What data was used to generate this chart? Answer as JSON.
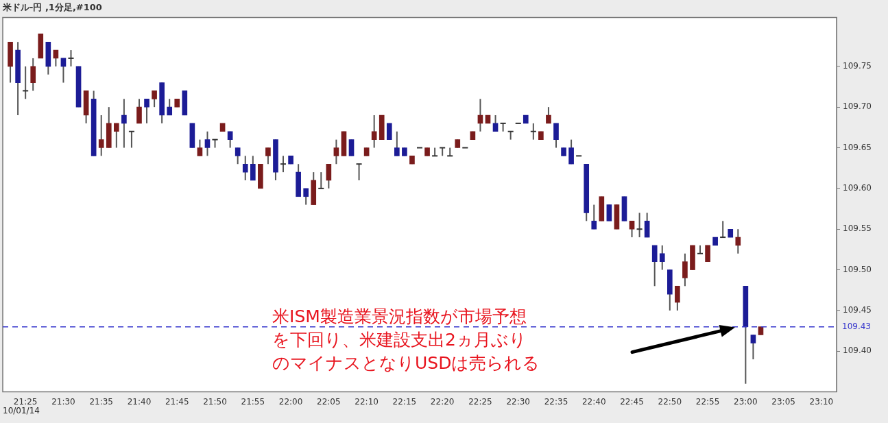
{
  "chart_data": {
    "type": "candlestick",
    "title": "米ドル-円 ,1分足,#100",
    "x": [
      "--10-01T21:23",
      "--10-01T21:24",
      "--10-01T21:25",
      "--10-01T21:26",
      "--10-01T21:27",
      "--10-01T21:28",
      "--10-01T21:29",
      "--10-01T21:30",
      "--10-01T21:31",
      "--10-01T21:32",
      "--10-01T21:33",
      "--10-01T21:34",
      "--10-01T21:35",
      "--10-01T21:36",
      "--10-01T21:37",
      "--10-01T21:38",
      "--10-01T21:39",
      "--10-01T21:40",
      "--10-01T21:41",
      "--10-01T21:42",
      "--10-01T21:43",
      "--10-01T21:44",
      "--10-01T21:45",
      "--10-01T21:46",
      "--10-01T21:47",
      "--10-01T21:48",
      "--10-01T21:49",
      "--10-01T21:50",
      "--10-01T21:51",
      "--10-01T21:52",
      "--10-01T21:53",
      "--10-01T21:54",
      "--10-01T21:55",
      "--10-01T21:56",
      "--10-01T21:57",
      "--10-01T21:58",
      "--10-01T21:59",
      "--10-01T22:00",
      "--10-01T22:01",
      "--10-01T22:02",
      "--10-01T22:03",
      "--10-01T22:04",
      "--10-01T22:05",
      "--10-01T22:06",
      "--10-01T22:07",
      "--10-01T22:08",
      "--10-01T22:09",
      "--10-01T22:10",
      "--10-01T22:11",
      "--10-01T22:12",
      "--10-01T22:13",
      "--10-01T22:14",
      "--10-01T22:15",
      "--10-01T22:16",
      "--10-01T22:17",
      "--10-01T22:18",
      "--10-01T22:19",
      "--10-01T22:20",
      "--10-01T22:21",
      "--10-01T22:22",
      "--10-01T22:23",
      "--10-01T22:24",
      "--10-01T22:25",
      "--10-01T22:26",
      "--10-01T22:27",
      "--10-01T22:28",
      "--10-01T22:29",
      "--10-01T22:30",
      "--10-01T22:31",
      "--10-01T22:32",
      "--10-01T22:33",
      "--10-01T22:34",
      "--10-01T22:35",
      "--10-01T22:36",
      "--10-01T22:37",
      "--10-01T22:38",
      "--10-01T22:39",
      "--10-01T22:40",
      "--10-01T22:41",
      "--10-01T22:42",
      "--10-01T22:43",
      "--10-01T22:44",
      "--10-01T22:45",
      "--10-01T22:46",
      "--10-01T22:47",
      "--10-01T22:48",
      "--10-01T22:49",
      "--10-01T22:50",
      "--10-01T22:51",
      "--10-01T22:52",
      "--10-01T22:53",
      "--10-01T22:54",
      "--10-01T22:55",
      "--10-01T22:56",
      "--10-01T22:57",
      "--10-01T22:58",
      "--10-01T22:59",
      "--10-01T23:00",
      "--10-01T23:01",
      "--10-01T23:02"
    ],
    "ohlc": [
      [
        109.75,
        109.78,
        109.73,
        109.78
      ],
      [
        109.77,
        109.78,
        109.69,
        109.73
      ],
      [
        109.72,
        109.75,
        109.71,
        109.72
      ],
      [
        109.73,
        109.76,
        109.72,
        109.75
      ],
      [
        109.76,
        109.79,
        109.76,
        109.79
      ],
      [
        109.78,
        109.78,
        109.74,
        109.75
      ],
      [
        109.76,
        109.77,
        109.75,
        109.77
      ],
      [
        109.76,
        109.76,
        109.73,
        109.75
      ],
      [
        109.76,
        109.77,
        109.75,
        109.76
      ],
      [
        109.75,
        109.75,
        109.7,
        109.7
      ],
      [
        109.69,
        109.72,
        109.68,
        109.72
      ],
      [
        109.71,
        109.72,
        109.64,
        109.64
      ],
      [
        109.65,
        109.69,
        109.64,
        109.66
      ],
      [
        109.65,
        109.7,
        109.65,
        109.68
      ],
      [
        109.67,
        109.68,
        109.65,
        109.68
      ],
      [
        109.69,
        109.71,
        109.65,
        109.68
      ],
      [
        109.67,
        109.67,
        109.65,
        109.67
      ],
      [
        109.68,
        109.71,
        109.68,
        109.7
      ],
      [
        109.71,
        109.71,
        109.68,
        109.7
      ],
      [
        109.71,
        109.72,
        109.7,
        109.72
      ],
      [
        109.73,
        109.73,
        109.68,
        109.69
      ],
      [
        109.7,
        109.71,
        109.69,
        109.69
      ],
      [
        109.7,
        109.71,
        109.7,
        109.71
      ],
      [
        109.72,
        109.72,
        109.69,
        109.69
      ],
      [
        109.68,
        109.68,
        109.65,
        109.65
      ],
      [
        109.64,
        109.66,
        109.64,
        109.65
      ],
      [
        109.66,
        109.67,
        109.64,
        109.65
      ],
      [
        109.66,
        109.66,
        109.65,
        109.66
      ],
      [
        109.67,
        109.68,
        109.67,
        109.68
      ],
      [
        109.67,
        109.67,
        109.65,
        109.66
      ],
      [
        109.65,
        109.65,
        109.63,
        109.64
      ],
      [
        109.63,
        109.64,
        109.61,
        109.62
      ],
      [
        109.63,
        109.64,
        109.61,
        109.61
      ],
      [
        109.6,
        109.63,
        109.6,
        109.63
      ],
      [
        109.64,
        109.65,
        109.63,
        109.65
      ],
      [
        109.66,
        109.66,
        109.61,
        109.62
      ],
      [
        109.63,
        109.64,
        109.62,
        109.63
      ],
      [
        109.64,
        109.64,
        109.63,
        109.63
      ],
      [
        109.62,
        109.63,
        109.59,
        109.59
      ],
      [
        109.6,
        109.6,
        109.58,
        109.59
      ],
      [
        109.58,
        109.62,
        109.58,
        109.61
      ],
      [
        109.6,
        109.62,
        109.6,
        109.6
      ],
      [
        109.61,
        109.63,
        109.6,
        109.63
      ],
      [
        109.64,
        109.66,
        109.63,
        109.65
      ],
      [
        109.64,
        109.67,
        109.64,
        109.67
      ],
      [
        109.66,
        109.66,
        109.64,
        109.64
      ],
      [
        109.63,
        109.63,
        109.61,
        109.63
      ],
      [
        109.64,
        109.65,
        109.64,
        109.65
      ],
      [
        109.66,
        109.69,
        109.65,
        109.67
      ],
      [
        109.66,
        109.69,
        109.66,
        109.69
      ],
      [
        109.68,
        109.68,
        109.66,
        109.66
      ],
      [
        109.65,
        109.67,
        109.64,
        109.64
      ],
      [
        109.65,
        109.65,
        109.64,
        109.64
      ],
      [
        109.63,
        109.64,
        109.63,
        109.64
      ],
      [
        109.65,
        109.65,
        109.65,
        109.65
      ],
      [
        109.64,
        109.65,
        109.64,
        109.65
      ],
      [
        109.64,
        109.65,
        109.64,
        109.64
      ],
      [
        109.65,
        109.65,
        109.64,
        109.65
      ],
      [
        109.64,
        109.65,
        109.64,
        109.64
      ],
      [
        109.65,
        109.66,
        109.65,
        109.66
      ],
      [
        109.65,
        109.65,
        109.65,
        109.65
      ],
      [
        109.66,
        109.67,
        109.66,
        109.67
      ],
      [
        109.68,
        109.71,
        109.67,
        109.69
      ],
      [
        109.68,
        109.69,
        109.68,
        109.69
      ],
      [
        109.68,
        109.69,
        109.67,
        109.67
      ],
      [
        109.68,
        109.68,
        109.67,
        109.68
      ],
      [
        109.67,
        109.67,
        109.66,
        109.67
      ],
      [
        109.68,
        109.68,
        109.68,
        109.68
      ],
      [
        109.69,
        109.69,
        109.68,
        109.68
      ],
      [
        109.67,
        109.68,
        109.66,
        109.67
      ],
      [
        109.66,
        109.67,
        109.66,
        109.67
      ],
      [
        109.68,
        109.7,
        109.68,
        109.69
      ],
      [
        109.68,
        109.68,
        109.65,
        109.66
      ],
      [
        109.65,
        109.65,
        109.64,
        109.64
      ],
      [
        109.65,
        109.66,
        109.63,
        109.63
      ],
      [
        109.64,
        109.64,
        109.64,
        109.64
      ],
      [
        109.63,
        109.63,
        109.56,
        109.57
      ],
      [
        109.56,
        109.58,
        109.55,
        109.55
      ],
      [
        109.56,
        109.59,
        109.56,
        109.59
      ],
      [
        109.58,
        109.58,
        109.56,
        109.56
      ],
      [
        109.55,
        109.58,
        109.55,
        109.58
      ],
      [
        109.59,
        109.59,
        109.56,
        109.56
      ],
      [
        109.55,
        109.56,
        109.54,
        109.56
      ],
      [
        109.55,
        109.57,
        109.54,
        109.55
      ],
      [
        109.56,
        109.57,
        109.54,
        109.54
      ],
      [
        109.53,
        109.53,
        109.48,
        109.51
      ],
      [
        109.52,
        109.53,
        109.5,
        109.51
      ],
      [
        109.5,
        109.5,
        109.45,
        109.47
      ],
      [
        109.46,
        109.48,
        109.45,
        109.48
      ],
      [
        109.49,
        109.52,
        109.48,
        109.51
      ],
      [
        109.5,
        109.53,
        109.5,
        109.53
      ],
      [
        109.52,
        109.53,
        109.52,
        109.52
      ],
      [
        109.51,
        109.53,
        109.51,
        109.53
      ],
      [
        109.54,
        109.54,
        109.53,
        109.53
      ],
      [
        109.54,
        109.56,
        109.54,
        109.54
      ],
      [
        109.55,
        109.55,
        109.54,
        109.54
      ],
      [
        109.53,
        109.55,
        109.52,
        109.54
      ],
      [
        109.48,
        109.48,
        109.36,
        109.43
      ],
      [
        109.42,
        109.42,
        109.39,
        109.41
      ],
      [
        109.42,
        109.43,
        109.42,
        109.43
      ]
    ],
    "colors": [
      "#7a1c1c",
      "#1c1c96",
      "#333333",
      "#7a1c1c",
      "#7a1c1c",
      "#1c1c96",
      "#7a1c1c",
      "#1c1c96",
      "#333333",
      "#1c1c96",
      "#7a1c1c",
      "#1c1c96",
      "#7a1c1c",
      "#7a1c1c",
      "#7a1c1c",
      "#1c1c96",
      "#333333",
      "#7a1c1c",
      "#1c1c96",
      "#7a1c1c",
      "#1c1c96",
      "#1c1c96",
      "#7a1c1c",
      "#1c1c96",
      "#1c1c96",
      "#7a1c1c",
      "#1c1c96",
      "#333333",
      "#7a1c1c",
      "#1c1c96",
      "#1c1c96",
      "#1c1c96",
      "#1c1c96",
      "#7a1c1c",
      "#7a1c1c",
      "#1c1c96",
      "#333333",
      "#1c1c96",
      "#1c1c96",
      "#1c1c96",
      "#7a1c1c",
      "#333333",
      "#7a1c1c",
      "#7a1c1c",
      "#7a1c1c",
      "#1c1c96",
      "#333333",
      "#7a1c1c",
      "#7a1c1c",
      "#7a1c1c",
      "#1c1c96",
      "#1c1c96",
      "#1c1c96",
      "#7a1c1c",
      "#333333",
      "#7a1c1c",
      "#333333",
      "#333333",
      "#333333",
      "#7a1c1c",
      "#333333",
      "#7a1c1c",
      "#7a1c1c",
      "#7a1c1c",
      "#1c1c96",
      "#333333",
      "#333333",
      "#333333",
      "#1c1c96",
      "#333333",
      "#7a1c1c",
      "#7a1c1c",
      "#1c1c96",
      "#1c1c96",
      "#1c1c96",
      "#333333",
      "#1c1c96",
      "#1c1c96",
      "#7a1c1c",
      "#1c1c96",
      "#7a1c1c",
      "#1c1c96",
      "#7a1c1c",
      "#333333",
      "#1c1c96",
      "#1c1c96",
      "#1c1c96",
      "#1c1c96",
      "#7a1c1c",
      "#7a1c1c",
      "#7a1c1c",
      "#333333",
      "#7a1c1c",
      "#1c1c96",
      "#333333",
      "#1c1c96",
      "#7a1c1c",
      "#1c1c96",
      "#1c1c96",
      "#7a1c1c"
    ],
    "xlim": [
      "--10-01T21:22",
      "--10-01T23:12"
    ],
    "xticks": [
      {
        "value": "--10-01T21:25",
        "label": "21:25"
      },
      {
        "value": "--10-01T21:30",
        "label": "21:30"
      },
      {
        "value": "--10-01T21:35",
        "label": "21:35"
      },
      {
        "value": "--10-01T21:40",
        "label": "21:40"
      },
      {
        "value": "--10-01T21:45",
        "label": "21:45"
      },
      {
        "value": "--10-01T21:50",
        "label": "21:50"
      },
      {
        "value": "--10-01T21:55",
        "label": "21:55"
      },
      {
        "value": "--10-01T22:00",
        "label": "22:00"
      },
      {
        "value": "--10-01T22:05",
        "label": "22:05"
      },
      {
        "value": "--10-01T22:10",
        "label": "22:10"
      },
      {
        "value": "--10-01T22:15",
        "label": "22:15"
      },
      {
        "value": "--10-01T22:20",
        "label": "22:20"
      },
      {
        "value": "--10-01T22:25",
        "label": "22:25"
      },
      {
        "value": "--10-01T22:30",
        "label": "22:30"
      },
      {
        "value": "--10-01T22:35",
        "label": "22:35"
      },
      {
        "value": "--10-01T22:40",
        "label": "22:40"
      },
      {
        "value": "--10-01T22:45",
        "label": "22:45"
      },
      {
        "value": "--10-01T22:50",
        "label": "22:50"
      },
      {
        "value": "--10-01T22:55",
        "label": "22:55"
      },
      {
        "value": "--10-01T23:00",
        "label": "23:00"
      },
      {
        "value": "--10-01T23:05",
        "label": "23:05"
      },
      {
        "value": "--10-01T23:10",
        "label": "23:10"
      }
    ],
    "ylim": [
      109.35,
      109.81
    ],
    "yticks": [
      {
        "value": 109.4,
        "label": "109.40"
      },
      {
        "value": 109.45,
        "label": "109.45"
      },
      {
        "value": 109.5,
        "label": "109.50"
      },
      {
        "value": 109.55,
        "label": "109.55"
      },
      {
        "value": 109.6,
        "label": "109.60"
      },
      {
        "value": 109.65,
        "label": "109.65"
      },
      {
        "value": 109.7,
        "label": "109.70"
      },
      {
        "value": 109.75,
        "label": "109.75"
      }
    ],
    "ref_lines": [
      {
        "axis": "y",
        "value": 109.43,
        "label": "109.43",
        "color": "#3333cc",
        "line_style": "dashed"
      }
    ],
    "annotations": [
      "10/01/14",
      "米ISM製造業景況指数が市場予想を下回り、米建設支出2ヵ月ぶりのマイナスとなりUSDは売られる"
    ],
    "grid": false,
    "legend": false
  }
}
